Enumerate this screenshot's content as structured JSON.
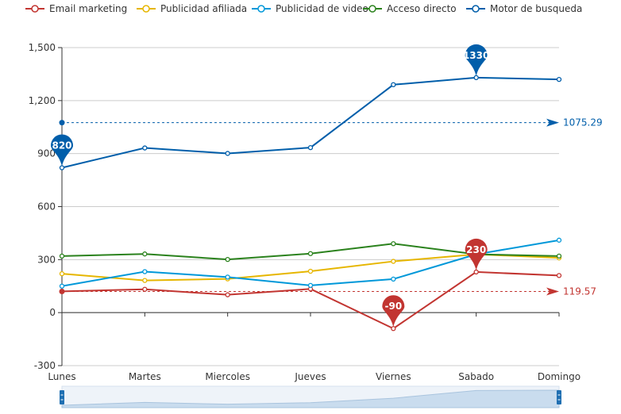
{
  "chart_data": {
    "type": "line",
    "categories": [
      "Lunes",
      "Martes",
      "Miercoles",
      "Jueves",
      "Viernes",
      "Sabado",
      "Domingo"
    ],
    "ylim": [
      -300,
      1500
    ],
    "yticks": [
      "1,500",
      "1,200",
      "900",
      "600",
      "300",
      "0",
      "-300"
    ],
    "ytick_values": [
      1500,
      1200,
      900,
      600,
      300,
      0,
      -300
    ],
    "grid": true,
    "legend_position": "top",
    "series": [
      {
        "name": "Email marketing",
        "color": "#c23531",
        "values": [
          120,
          132,
          101,
          134,
          -90,
          230,
          210
        ],
        "markers": [
          {
            "label": "-90",
            "index": 4
          },
          {
            "label": "230",
            "index": 5
          }
        ],
        "average": {
          "label": "119.57",
          "value": 119.57
        }
      },
      {
        "name": "Publicidad afiliada",
        "color": "#e6b600",
        "values": [
          220,
          182,
          191,
          234,
          290,
          330,
          310
        ]
      },
      {
        "name": "Publicidad de video",
        "color": "#0098d9",
        "values": [
          150,
          232,
          201,
          154,
          190,
          330,
          410
        ]
      },
      {
        "name": "Acceso directo",
        "color": "#2b821d",
        "values": [
          320,
          332,
          301,
          334,
          390,
          330,
          320
        ]
      },
      {
        "name": "Motor de busqueda",
        "color": "#005eaa",
        "values": [
          820,
          932,
          901,
          934,
          1290,
          1330,
          1320
        ],
        "markers": [
          {
            "label": "820",
            "index": 0
          },
          {
            "label": "1330",
            "index": 5
          }
        ],
        "average": {
          "label": "1075.29",
          "value": 1075.29
        }
      }
    ]
  }
}
